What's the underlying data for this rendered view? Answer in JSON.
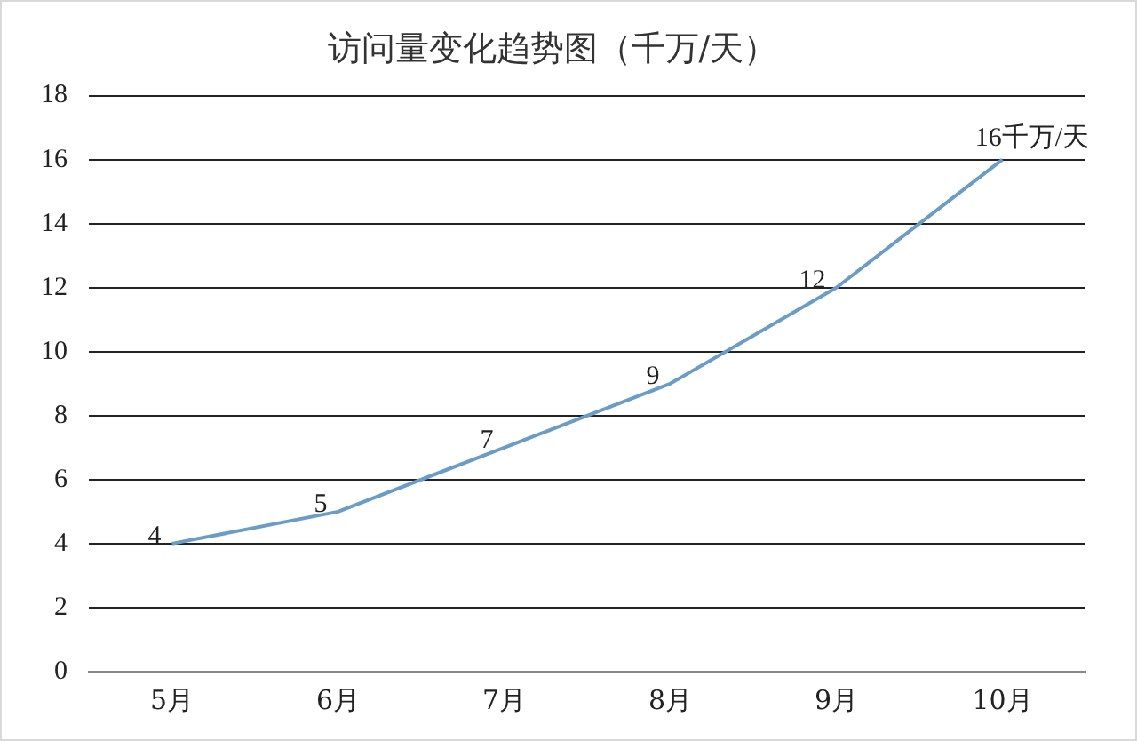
{
  "chart_data": {
    "type": "line",
    "title": "访问量变化趋势图（千万/天）",
    "categories": [
      "5月",
      "6月",
      "7月",
      "8月",
      "9月",
      "10月"
    ],
    "values": [
      4,
      5,
      7,
      9,
      12,
      16
    ],
    "value_labels": [
      "4",
      "5",
      "7",
      "9",
      "12",
      "16千万/天"
    ],
    "color": "#6a9cc8",
    "ylim": [
      0,
      18
    ],
    "yticks": [
      0,
      2,
      4,
      6,
      8,
      10,
      12,
      14,
      16,
      18
    ],
    "grid": "y",
    "legend": false,
    "marker": "none",
    "line_style": "solid"
  }
}
